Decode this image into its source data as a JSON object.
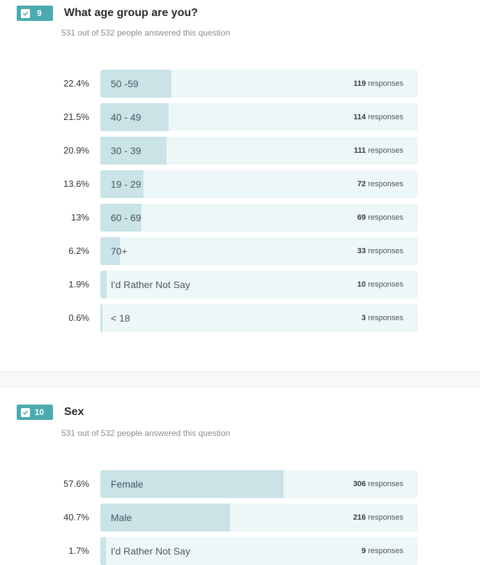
{
  "questions": [
    {
      "number": "9",
      "title": "What age group are you?",
      "subtitle": "531 out of 532 people answered this question",
      "responses_word": "responses",
      "options": [
        {
          "pct_label": "22.4%",
          "value": 0.224,
          "label": "50 -59",
          "count": "119"
        },
        {
          "pct_label": "21.5%",
          "value": 0.215,
          "label": "40 - 49",
          "count": "114"
        },
        {
          "pct_label": "20.9%",
          "value": 0.209,
          "label": "30 - 39",
          "count": "111"
        },
        {
          "pct_label": "13.6%",
          "value": 0.136,
          "label": "19 - 29",
          "count": "72"
        },
        {
          "pct_label": "13%",
          "value": 0.13,
          "label": "60 - 69",
          "count": "69"
        },
        {
          "pct_label": "6.2%",
          "value": 0.062,
          "label": "70+",
          "count": "33"
        },
        {
          "pct_label": "1.9%",
          "value": 0.019,
          "label": "I'd Rather Not Say",
          "count": "10"
        },
        {
          "pct_label": "0.6%",
          "value": 0.006,
          "label": "< 18",
          "count": "3"
        }
      ]
    },
    {
      "number": "10",
      "title": "Sex",
      "subtitle": "531 out of 532 people answered this question",
      "responses_word": "responses",
      "options": [
        {
          "pct_label": "57.6%",
          "value": 0.576,
          "label": "Female",
          "count": "306"
        },
        {
          "pct_label": "40.7%",
          "value": 0.407,
          "label": "Male",
          "count": "216"
        },
        {
          "pct_label": "1.7%",
          "value": 0.017,
          "label": "I'd Rather Not Say",
          "count": "9"
        }
      ]
    }
  ],
  "colors": {
    "badge": "#4aaab0",
    "bar_track": "#eef7f7",
    "bar_fill": "#c9e3e6"
  },
  "icons": {
    "badge_icon": "check-icon"
  }
}
